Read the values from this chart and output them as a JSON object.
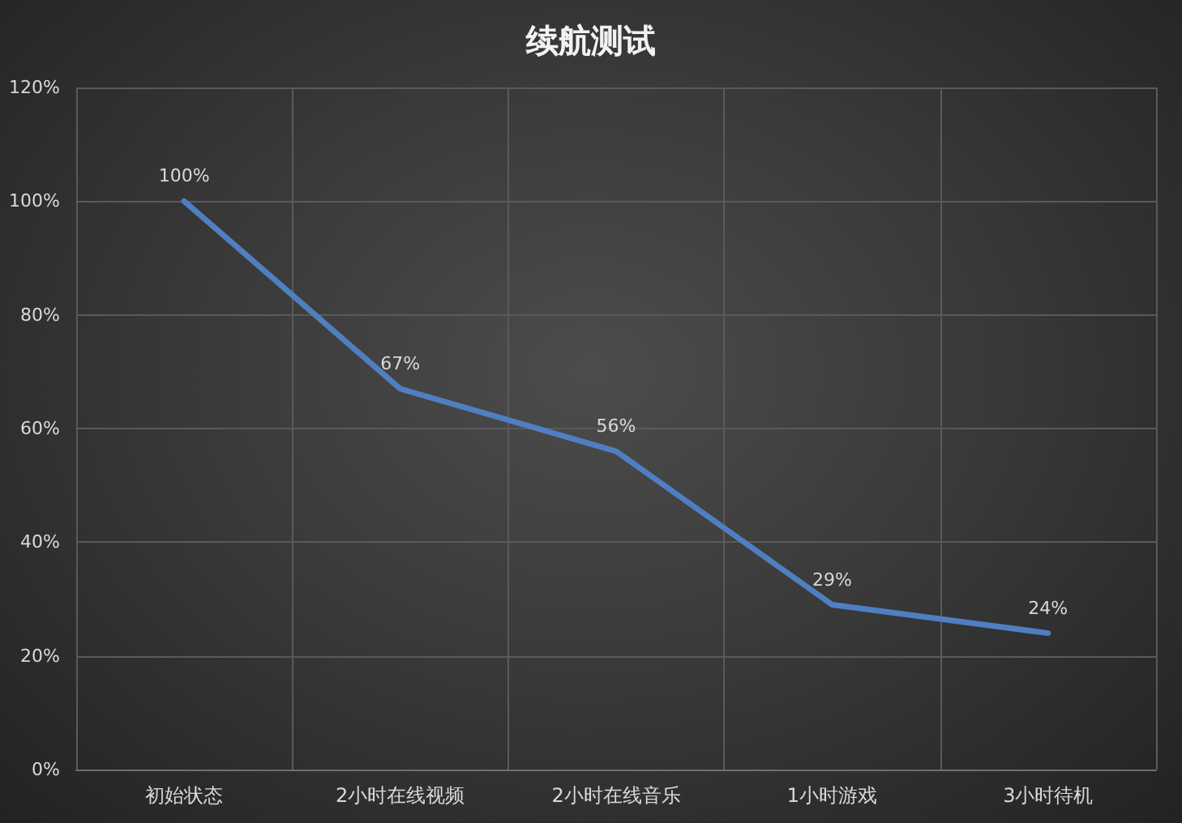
{
  "chart_data": {
    "type": "line",
    "title": "续航测试",
    "categories": [
      "初始状态",
      "2小时在线视频",
      "2小时在线音乐",
      "1小时游戏",
      "3小时待机"
    ],
    "values": [
      100,
      67,
      56,
      29,
      24
    ],
    "value_labels": [
      "100%",
      "67%",
      "56%",
      "29%",
      "24%"
    ],
    "color": "#4f7fc0",
    "marker": "none",
    "line_style": "solid",
    "ylim": [
      0,
      120
    ],
    "yticks": [
      {
        "value": 0,
        "label": "0%"
      },
      {
        "value": 20,
        "label": "20%"
      },
      {
        "value": 40,
        "label": "40%"
      },
      {
        "value": 60,
        "label": "60%"
      },
      {
        "value": 80,
        "label": "80%"
      },
      {
        "value": 100,
        "label": "100%"
      },
      {
        "value": 120,
        "label": "120%"
      }
    ],
    "grid": true
  }
}
